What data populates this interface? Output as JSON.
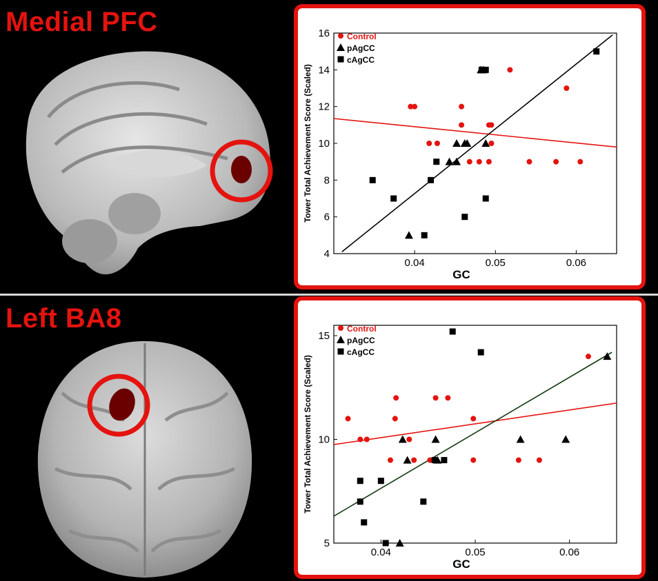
{
  "panels": {
    "top": {
      "title": "Medial PFC"
    },
    "bottom": {
      "title": "Left BA8"
    }
  },
  "colors": {
    "control": "#e4130f",
    "agcc": "#000000",
    "frame": "#e4130f",
    "fit_bottom_agcc": "#123a12"
  },
  "chart_data": [
    {
      "type": "scatter",
      "xlabel": "GC",
      "ylabel": "Tower Total Achievement Score (Scaled)",
      "xlim": [
        0.03,
        0.065
      ],
      "ylim": [
        4,
        16
      ],
      "xticks": [
        0.04,
        0.05,
        0.06
      ],
      "xtick_labels": [
        "0.04",
        "0.05",
        "0.06"
      ],
      "yticks": [
        4,
        6,
        8,
        10,
        12,
        14,
        16
      ],
      "ytick_labels": [
        "4",
        "6",
        "8",
        "10",
        "12",
        "14",
        "16"
      ],
      "legend": [
        "Control",
        "pAgCC",
        "cAgCC"
      ],
      "legend_position": "top-left",
      "series": [
        {
          "name": "Control",
          "marker": "circle",
          "color": "#e4130f",
          "points": [
            [
              0.0395,
              12
            ],
            [
              0.04,
              12
            ],
            [
              0.0418,
              10
            ],
            [
              0.0428,
              10
            ],
            [
              0.0458,
              11
            ],
            [
              0.0458,
              12
            ],
            [
              0.0468,
              9
            ],
            [
              0.048,
              9
            ],
            [
              0.0492,
              11
            ],
            [
              0.0495,
              11
            ],
            [
              0.0495,
              10
            ],
            [
              0.0492,
              9
            ],
            [
              0.0518,
              14
            ],
            [
              0.0542,
              9
            ],
            [
              0.0575,
              9
            ],
            [
              0.0588,
              13
            ],
            [
              0.0605,
              9
            ]
          ]
        },
        {
          "name": "pAgCC",
          "marker": "triangle",
          "color": "#000000",
          "points": [
            [
              0.0393,
              5
            ],
            [
              0.0443,
              9
            ],
            [
              0.0452,
              10
            ],
            [
              0.0452,
              9
            ],
            [
              0.0462,
              10
            ],
            [
              0.0465,
              10
            ],
            [
              0.0482,
              14
            ],
            [
              0.0485,
              14
            ],
            [
              0.0488,
              10
            ]
          ]
        },
        {
          "name": "cAgCC",
          "marker": "square",
          "color": "#000000",
          "points": [
            [
              0.0348,
              8
            ],
            [
              0.0374,
              7
            ],
            [
              0.0412,
              5
            ],
            [
              0.042,
              8
            ],
            [
              0.0427,
              9
            ],
            [
              0.0462,
              6
            ],
            [
              0.0483,
              14
            ],
            [
              0.0488,
              7
            ],
            [
              0.0488,
              14
            ],
            [
              0.0625,
              15
            ]
          ]
        }
      ],
      "fit_lines": [
        {
          "series": "Control",
          "color": "#e4130f",
          "x": [
            0.03,
            0.065
          ],
          "y": [
            11.35,
            9.8
          ]
        },
        {
          "series": "AgCC",
          "color": "#000000",
          "x": [
            0.031,
            0.0645
          ],
          "y": [
            4.1,
            15.9
          ]
        }
      ]
    },
    {
      "type": "scatter",
      "xlabel": "GC",
      "ylabel": "Tower Total Achievement Score (Scaled)",
      "xlim": [
        0.035,
        0.065
      ],
      "ylim": [
        5,
        15.5
      ],
      "xticks": [
        0.04,
        0.05,
        0.06
      ],
      "xtick_labels": [
        "0.04",
        "0.05",
        "0.06"
      ],
      "yticks": [
        5,
        10,
        15
      ],
      "ytick_labels": [
        "5",
        "10",
        "15"
      ],
      "legend": [
        "Control",
        "pAgCC",
        "cAgCC"
      ],
      "legend_position": "top-left",
      "series": [
        {
          "name": "Control",
          "marker": "circle",
          "color": "#e4130f",
          "points": [
            [
              0.0365,
              11
            ],
            [
              0.0378,
              10
            ],
            [
              0.0385,
              10
            ],
            [
              0.041,
              9
            ],
            [
              0.0415,
              11
            ],
            [
              0.0416,
              12
            ],
            [
              0.043,
              10
            ],
            [
              0.0435,
              9
            ],
            [
              0.0452,
              9
            ],
            [
              0.0458,
              12
            ],
            [
              0.0471,
              12
            ],
            [
              0.0498,
              11
            ],
            [
              0.0498,
              9
            ],
            [
              0.0546,
              9
            ],
            [
              0.0568,
              9
            ],
            [
              0.062,
              14
            ]
          ]
        },
        {
          "name": "pAgCC",
          "marker": "triangle",
          "color": "#000000",
          "points": [
            [
              0.042,
              5
            ],
            [
              0.0423,
              10
            ],
            [
              0.0428,
              9
            ],
            [
              0.0458,
              10
            ],
            [
              0.046,
              9
            ],
            [
              0.0548,
              10
            ],
            [
              0.0596,
              10
            ],
            [
              0.064,
              14
            ]
          ]
        },
        {
          "name": "cAgCC",
          "marker": "square",
          "color": "#000000",
          "points": [
            [
              0.0378,
              8
            ],
            [
              0.0378,
              7
            ],
            [
              0.0382,
              6
            ],
            [
              0.04,
              8
            ],
            [
              0.0405,
              5
            ],
            [
              0.0445,
              7
            ],
            [
              0.0457,
              9
            ],
            [
              0.0467,
              9
            ],
            [
              0.0476,
              15.2
            ],
            [
              0.0506,
              14.2
            ]
          ]
        }
      ],
      "fit_lines": [
        {
          "series": "Control",
          "color": "#e4130f",
          "x": [
            0.035,
            0.065
          ],
          "y": [
            9.75,
            11.75
          ]
        },
        {
          "series": "AgCC",
          "color": "#123a12",
          "x": [
            0.035,
            0.0645
          ],
          "y": [
            6.3,
            14.2
          ]
        }
      ]
    }
  ]
}
